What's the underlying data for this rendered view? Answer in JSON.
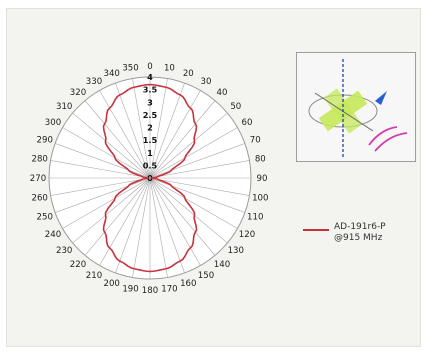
{
  "chart_data": {
    "type": "polar-line",
    "angle_unit": "degrees",
    "angle_ticks": [
      0,
      10,
      20,
      30,
      40,
      50,
      60,
      70,
      80,
      90,
      100,
      110,
      120,
      130,
      140,
      150,
      160,
      170,
      180,
      190,
      200,
      210,
      220,
      230,
      240,
      250,
      260,
      270,
      280,
      290,
      300,
      310,
      320,
      330,
      340,
      350
    ],
    "radial_ticks": [
      "0",
      "0.5",
      "1",
      "1.5",
      "2",
      "2.5",
      "3",
      "3.5",
      "4"
    ],
    "rlim": [
      0,
      4
    ],
    "grid": true,
    "legend_position": "right",
    "series": [
      {
        "name": "AD-191r6-P\n@915 MHz",
        "color": "#c8323c",
        "angles": [
          0,
          10,
          20,
          30,
          40,
          50,
          60,
          70,
          80,
          90,
          100,
          110,
          120,
          130,
          140,
          150,
          160,
          170,
          180,
          190,
          200,
          210,
          220,
          230,
          240,
          250,
          260,
          270,
          280,
          290,
          300,
          310,
          320,
          330,
          340,
          350
        ],
        "values": [
          3.7,
          3.65,
          3.5,
          3.2,
          2.8,
          2.3,
          1.6,
          0.9,
          0.3,
          0.05,
          0.3,
          0.9,
          1.6,
          2.3,
          2.8,
          3.2,
          3.5,
          3.65,
          3.7,
          3.65,
          3.5,
          3.2,
          2.8,
          2.3,
          1.6,
          0.9,
          0.3,
          0.05,
          0.3,
          0.9,
          1.6,
          2.3,
          2.8,
          3.2,
          3.5,
          3.65
        ]
      }
    ]
  },
  "inset": {
    "antenna_color": "#c6e85a",
    "axis_color": "#2a3fae",
    "arrow_color": "#2a5fd0",
    "wave_color": "#d43cae"
  }
}
